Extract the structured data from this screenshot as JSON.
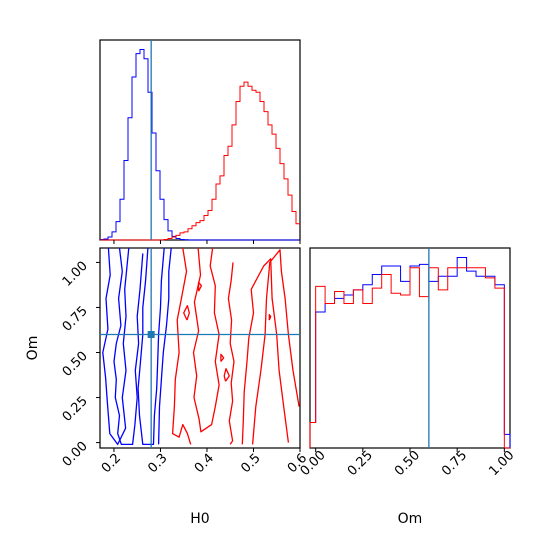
{
  "chart_data": {
    "type": "corner",
    "parameters": [
      "H0",
      "Om"
    ],
    "truth": {
      "H0": 0.28,
      "Om": 0.6
    },
    "colors": {
      "series_a": "#0000ff",
      "series_b": "#ff0000",
      "truth": "#1f77b4"
    },
    "panels": {
      "hist_H0": {
        "type": "histogram",
        "xlim": [
          0.17,
          0.6
        ],
        "bins": {
          "start": 0.17,
          "width": 0.0086
        },
        "series": [
          {
            "color": "#0000ff",
            "values": [
              0.5,
              1,
              3,
              8,
              18,
              40,
              78,
              120,
              160,
              183,
              187,
              178,
              145,
              105,
              68,
              40,
              20,
              9,
              3.5,
              1.5,
              0.5,
              0.2,
              0,
              0,
              0,
              0,
              0,
              0,
              0,
              0,
              0,
              0,
              0,
              0,
              0,
              0,
              0,
              0,
              0,
              0,
              0,
              0,
              0,
              0,
              0,
              0,
              0,
              0,
              0,
              0
            ]
          },
          {
            "color": "#ff0000",
            "values": [
              0,
              0,
              0,
              0,
              0,
              0,
              0,
              0,
              0,
              0,
              0,
              0,
              0,
              0,
              0,
              0,
              0.5,
              1.5,
              3,
              4.5,
              7,
              8,
              11,
              14,
              17,
              19,
              24,
              29,
              40,
              55,
              63,
              83,
              92,
              113,
              136,
              151,
              155,
              151,
              147,
              145,
              136,
              126,
              113,
              104,
              90,
              75,
              60,
              44,
              28,
              16
            ]
          }
        ]
      },
      "hist_Om": {
        "type": "histogram",
        "xlim": [
          -0.03,
          1.03
        ],
        "xticks": [
          "0.00",
          "0.25",
          "0.50",
          "0.75",
          "1.00"
        ],
        "series": [
          {
            "color": "#0000ff",
            "edges": [
              -0.03,
              0,
              0.05,
              0.1,
              0.15,
              0.2,
              0.25,
              0.3,
              0.35,
              0.4,
              0.45,
              0.5,
              0.55,
              0.6,
              0.65,
              0.7,
              0.75,
              0.8,
              0.85,
              0.9,
              0.95,
              1.0,
              1.03
            ],
            "values": [
              0.15,
              0.8,
              0.85,
              0.88,
              0.9,
              0.93,
              0.96,
              1.02,
              1.07,
              1.07,
              0.98,
              1.07,
              1.08,
              0.98,
              1.01,
              1.01,
              1.12,
              1.04,
              1.01,
              1.01,
              0.96,
              0.08
            ]
          },
          {
            "color": "#ff0000",
            "edges": [
              -0.03,
              0,
              0.05,
              0.1,
              0.15,
              0.2,
              0.25,
              0.3,
              0.35,
              0.4,
              0.45,
              0.5,
              0.55,
              0.6,
              0.65,
              0.7,
              0.75,
              0.8,
              0.85,
              0.9,
              0.95,
              1.0,
              1.03
            ],
            "values": [
              0.15,
              0.95,
              0.85,
              0.92,
              0.85,
              0.93,
              0.85,
              0.94,
              1.02,
              0.91,
              0.9,
              1.06,
              0.89,
              1.06,
              0.93,
              1.06,
              1.06,
              1.06,
              1.06,
              1.0,
              0.94,
              0
            ]
          }
        ]
      },
      "contour": {
        "type": "contour",
        "xlim": [
          0.17,
          0.6
        ],
        "ylim": [
          -0.03,
          1.08
        ],
        "xticks": [
          "0.2",
          "0.3",
          "0.4",
          "0.5",
          "0.6"
        ],
        "yticks": [
          "0.00",
          "0.25",
          "0.50",
          "0.75",
          "1.00"
        ],
        "series": [
          {
            "color": "#0000ff",
            "contours": [
              [
                [
                  0.188,
                  1.08
                ],
                [
                  0.192,
                  0.93
                ],
                [
                  0.183,
                  0.8
                ],
                [
                  0.187,
                  0.63
                ],
                [
                  0.176,
                  0.5
                ],
                [
                  0.182,
                  0.36
                ],
                [
                  0.186,
                  0.22
                ],
                [
                  0.191,
                  0.05
                ],
                [
                  0.208,
                  -0.01
                ],
                [
                  0.225,
                  0.08
                ],
                [
                  0.218,
                  0.25
                ],
                [
                  0.226,
                  0.4
                ],
                [
                  0.22,
                  0.55
                ],
                [
                  0.226,
                  0.7
                ],
                [
                  0.223,
                  0.85
                ],
                [
                  0.232,
                  1.08
                ]
              ],
              [
                [
                  0.212,
                  1.08
                ],
                [
                  0.218,
                  0.95
                ],
                [
                  0.21,
                  0.8
                ],
                [
                  0.215,
                  0.65
                ],
                [
                  0.205,
                  0.55
                ],
                [
                  0.2,
                  0.45
                ],
                [
                  0.205,
                  0.35
                ],
                [
                  0.203,
                  0.25
                ],
                [
                  0.212,
                  0.15
                ],
                [
                  0.208,
                  0.05
                ],
                [
                  0.216,
                  -0.01
                ],
                [
                  0.24,
                  -0.01
                ],
                [
                  0.245,
                  0.1
                ],
                [
                  0.25,
                  0.25
                ],
                [
                  0.246,
                  0.4
                ],
                [
                  0.253,
                  0.55
                ],
                [
                  0.25,
                  0.7
                ],
                [
                  0.256,
                  0.85
                ],
                [
                  0.262,
                  1.05
                ]
              ],
              [
                [
                  0.273,
                  1.08
                ],
                [
                  0.268,
                  0.9
                ],
                [
                  0.262,
                  0.75
                ],
                [
                  0.262,
                  0.6
                ],
                [
                  0.257,
                  0.45
                ],
                [
                  0.252,
                  0.3
                ],
                [
                  0.255,
                  0.15
                ],
                [
                  0.262,
                  -0.01
                ],
                [
                  0.285,
                  -0.01
                ],
                [
                  0.287,
                  0.15
                ],
                [
                  0.292,
                  0.3
                ],
                [
                  0.294,
                  0.45
                ],
                [
                  0.296,
                  0.6
                ],
                [
                  0.3,
                  0.75
                ],
                [
                  0.302,
                  0.9
                ],
                [
                  0.308,
                  1.08
                ]
              ],
              [
                [
                  0.323,
                  1.08
                ],
                [
                  0.318,
                  0.95
                ],
                [
                  0.318,
                  0.8
                ],
                [
                  0.313,
                  0.65
                ],
                [
                  0.306,
                  0.5
                ],
                [
                  0.302,
                  0.35
                ],
                [
                  0.298,
                  0.2
                ],
                [
                  0.296,
                  -0.01
                ]
              ]
            ]
          },
          {
            "color": "#ff0000",
            "contours": [
              [
                [
                  0.348,
                  1.08
                ],
                [
                  0.356,
                  0.95
                ],
                [
                  0.345,
                  0.8
                ],
                [
                  0.336,
                  0.68
                ],
                [
                  0.34,
                  0.5
                ],
                [
                  0.332,
                  0.35
                ],
                [
                  0.33,
                  0.2
                ],
                [
                  0.326,
                  0.05
                ],
                [
                  0.34,
                  0.03
                ],
                [
                  0.348,
                  0.1
                ],
                [
                  0.358,
                  0.05
                ],
                [
                  0.365,
                  -0.01
                ]
              ],
              [
                [
                  0.381,
                  1.08
                ],
                [
                  0.386,
                  0.93
                ],
                [
                  0.373,
                  0.78
                ],
                [
                  0.382,
                  0.62
                ],
                [
                  0.371,
                  0.5
                ],
                [
                  0.378,
                  0.37
                ],
                [
                  0.372,
                  0.25
                ],
                [
                  0.383,
                  0.13
                ],
                [
                  0.387,
                  0.06
                ],
                [
                  0.41,
                  0.1
                ],
                [
                  0.418,
                  0.2
                ],
                [
                  0.426,
                  0.32
                ],
                [
                  0.418,
                  0.45
                ],
                [
                  0.426,
                  0.6
                ],
                [
                  0.416,
                  0.72
                ],
                [
                  0.418,
                  0.87
                ],
                [
                  0.407,
                  0.98
                ],
                [
                  0.412,
                  1.08
                ]
              ],
              [
                [
                  0.456,
                  1.0
                ],
                [
                  0.452,
                  0.9
                ],
                [
                  0.446,
                  0.8
                ],
                [
                  0.453,
                  0.68
                ],
                [
                  0.45,
                  0.55
                ],
                [
                  0.458,
                  0.45
                ],
                [
                  0.452,
                  0.33
                ],
                [
                  0.455,
                  0.23
                ],
                [
                  0.448,
                  0.12
                ],
                [
                  0.455,
                  0.01
                ],
                [
                  0.45,
                  -0.01
                ]
              ],
              [
                [
                  0.476,
                  -0.01
                ],
                [
                  0.478,
                  0.12
                ],
                [
                  0.48,
                  0.28
                ],
                [
                  0.486,
                  0.45
                ],
                [
                  0.49,
                  0.58
                ],
                [
                  0.5,
                  0.72
                ],
                [
                  0.495,
                  0.85
                ],
                [
                  0.522,
                  0.98
                ],
                [
                  0.537,
                  1.02
                ],
                [
                  0.54,
                  0.8
                ],
                [
                  0.55,
                  0.6
                ],
                [
                  0.555,
                  0.4
                ],
                [
                  0.565,
                  0.2
                ],
                [
                  0.575,
                  0.0
                ]
              ],
              [
                [
                  0.498,
                  -0.01
                ],
                [
                  0.505,
                  0.2
                ],
                [
                  0.516,
                  0.4
                ],
                [
                  0.525,
                  0.6
                ],
                [
                  0.528,
                  0.8
                ],
                [
                  0.535,
                  1.0
                ],
                [
                  0.557,
                  1.07
                ],
                [
                  0.56,
                  0.95
                ],
                [
                  0.568,
                  0.8
                ],
                [
                  0.575,
                  0.6
                ],
                [
                  0.585,
                  0.4
                ],
                [
                  0.598,
                  0.2
                ]
              ],
              [
                [
                  0.357,
                  0.68
                ],
                [
                  0.362,
                  0.72
                ],
                [
                  0.358,
                  0.76
                ],
                [
                  0.35,
                  0.72
                ],
                [
                  0.357,
                  0.68
                ]
              ],
              [
                [
                  0.43,
                  0.45
                ],
                [
                  0.436,
                  0.47
                ],
                [
                  0.43,
                  0.49
                ],
                [
                  0.43,
                  0.45
                ]
              ],
              [
                [
                  0.44,
                  0.34
                ],
                [
                  0.448,
                  0.37
                ],
                [
                  0.441,
                  0.41
                ],
                [
                  0.437,
                  0.37
                ],
                [
                  0.44,
                  0.34
                ]
              ],
              [
                [
                  0.382,
                  0.84
                ],
                [
                  0.388,
                  0.87
                ],
                [
                  0.382,
                  0.89
                ],
                [
                  0.382,
                  0.84
                ]
              ],
              [
                [
                  0.534,
                  0.68
                ],
                [
                  0.537,
                  0.7
                ],
                [
                  0.534,
                  0.71
                ],
                [
                  0.534,
                  0.68
                ]
              ]
            ]
          }
        ]
      }
    },
    "xlabels": [
      "H0",
      "Om"
    ],
    "ylabel": "Om"
  }
}
